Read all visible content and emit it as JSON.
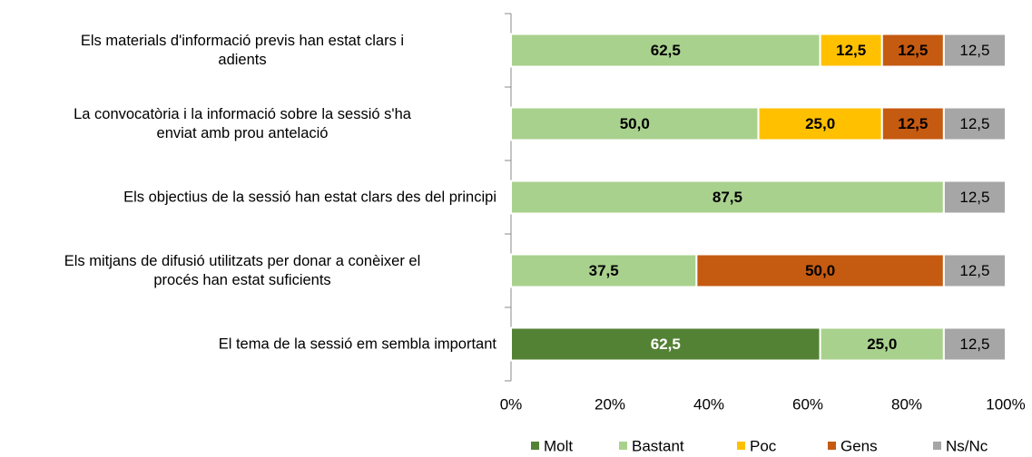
{
  "chart_data": {
    "type": "stacked-bar-horizontal",
    "categories": [
      "Els materials d'informació previs han estat clars i\nadients",
      "La convocatòria i la informació sobre la sessió s'ha\nenviat amb prou antelació",
      "Els objectius de la sessió han estat clars des del principi",
      "Els mitjans de difusió utilitzats per donar a conèixer el\nprocés han estat suficients",
      "El tema de la sessió em sembla important"
    ],
    "series": [
      {
        "name": "Molt",
        "color": "#548235",
        "values": [
          null,
          null,
          null,
          null,
          62.5
        ],
        "value_labels": [
          null,
          null,
          null,
          null,
          "62,5"
        ]
      },
      {
        "name": "Bastant",
        "color": "#a9d18e",
        "values": [
          62.5,
          50,
          87.5,
          37.5,
          25
        ],
        "value_labels": [
          "62,5",
          "50,0",
          "87,5",
          "37,5",
          "25,0"
        ]
      },
      {
        "name": "Poc",
        "color": "#ffc000",
        "values": [
          12.5,
          25,
          null,
          null,
          null
        ],
        "value_labels": [
          "12,5",
          "25,0",
          null,
          null,
          null
        ]
      },
      {
        "name": "Gens",
        "color": "#c55a11",
        "values": [
          12.5,
          12.5,
          null,
          50,
          null
        ],
        "value_labels": [
          "12,5",
          "12,5",
          null,
          "50,0",
          null
        ]
      },
      {
        "name": "Ns/Nc",
        "color": "#a6a6a6",
        "values": [
          12.5,
          12.5,
          12.5,
          12.5,
          12.5
        ],
        "value_labels": [
          "12,5",
          "12,5",
          "12,5",
          "12,5",
          "12,5"
        ]
      }
    ],
    "xlim": [
      0,
      100
    ],
    "xticks": [
      {
        "value": 0,
        "label": "0%"
      },
      {
        "value": 20,
        "label": "20%"
      },
      {
        "value": 40,
        "label": "40%"
      },
      {
        "value": 60,
        "label": "60%"
      },
      {
        "value": 80,
        "label": "80%"
      },
      {
        "value": 100,
        "label": "100%"
      }
    ],
    "legend": "bottom"
  }
}
